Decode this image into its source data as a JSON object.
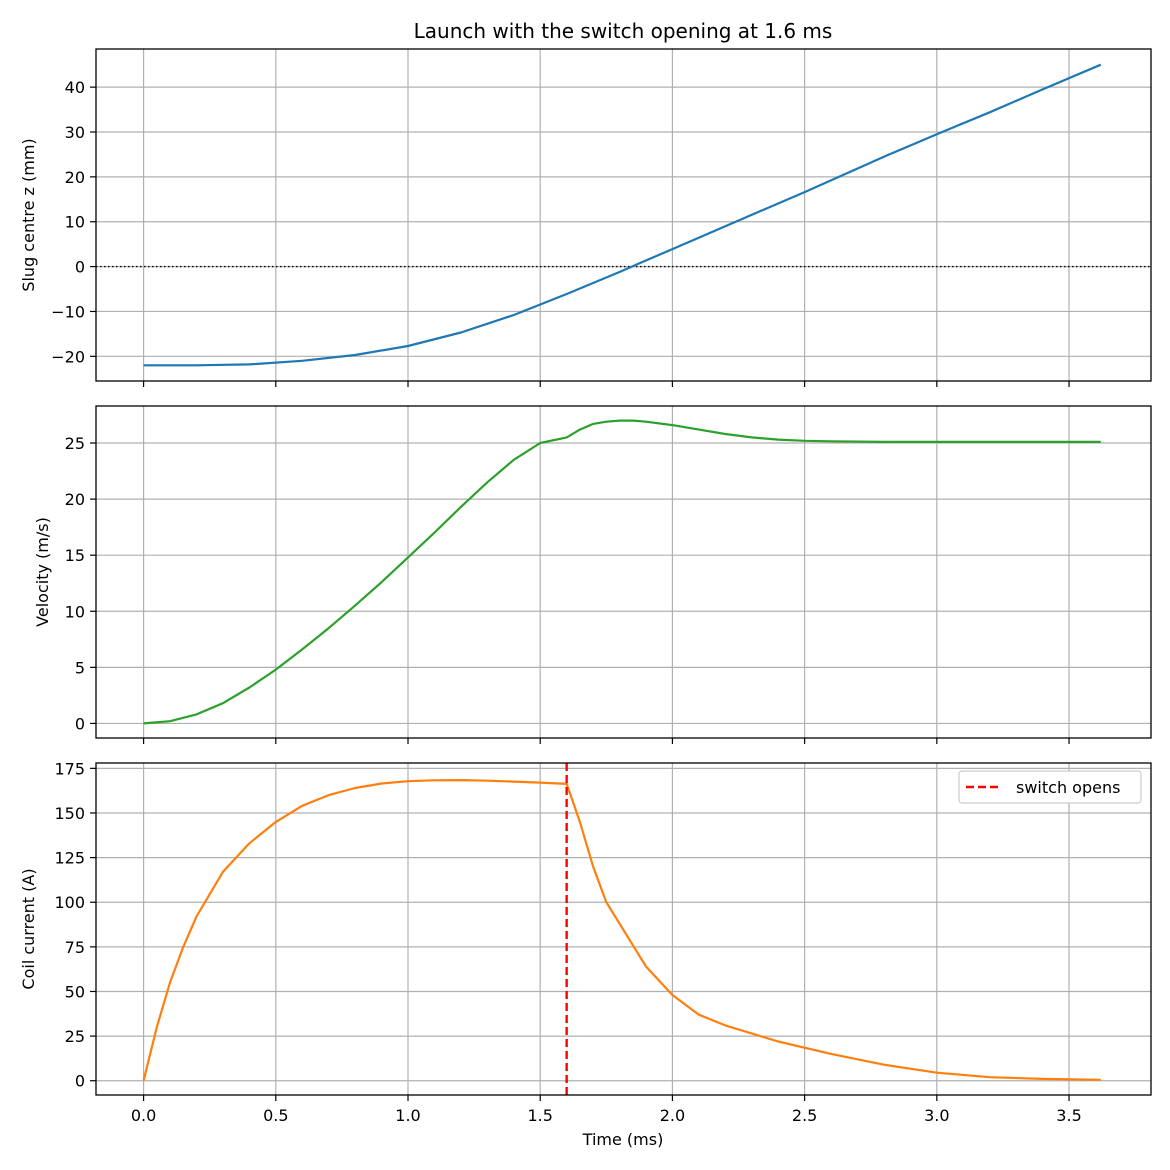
{
  "figure": {
    "title": "Launch with the switch opening at 1.6 ms",
    "xlabel": "Time (ms)"
  },
  "colors": {
    "position": "#1f77b4",
    "velocity": "#2ca02c",
    "current": "#ff7f0e",
    "switch": "#ff0000",
    "grid": "#b0b0b0"
  },
  "chart_data": [
    {
      "type": "line",
      "title": "Launch with the switch opening at 1.6 ms",
      "xlabel": "",
      "ylabel": "Slug centre z (mm)",
      "xlim": [
        -0.18,
        3.81
      ],
      "ylim": [
        -25.5,
        48.5
      ],
      "xticks": [
        0.0,
        0.5,
        1.0,
        1.5,
        2.0,
        2.5,
        3.0,
        3.5
      ],
      "yticks": [
        -20,
        -10,
        0,
        10,
        20,
        30,
        40
      ],
      "ytick_labels": [
        "−20",
        "−10",
        "0",
        "10",
        "20",
        "30",
        "40"
      ],
      "grid": true,
      "hline": {
        "y": 0,
        "style": "dotted"
      },
      "series": [
        {
          "color": "#1f77b4",
          "x": [
            0.0,
            0.2,
            0.4,
            0.6,
            0.8,
            1.0,
            1.2,
            1.4,
            1.6,
            1.8,
            1.87,
            2.0,
            2.2,
            2.5,
            2.8,
            3.0,
            3.2,
            3.4,
            3.62
          ],
          "y": [
            -22,
            -22,
            -21.8,
            -21,
            -19.7,
            -17.7,
            -14.7,
            -10.8,
            -6.1,
            -1.2,
            0.6,
            3.9,
            9.0,
            16.6,
            24.5,
            29.5,
            34.4,
            39.5,
            45.0
          ]
        }
      ]
    },
    {
      "type": "line",
      "xlabel": "",
      "ylabel": "Velocity (m/s)",
      "xlim": [
        -0.18,
        3.81
      ],
      "ylim": [
        -1.3,
        28.3
      ],
      "xticks": [
        0.0,
        0.5,
        1.0,
        1.5,
        2.0,
        2.5,
        3.0,
        3.5
      ],
      "yticks": [
        0,
        5,
        10,
        15,
        20,
        25
      ],
      "grid": true,
      "series": [
        {
          "color": "#2ca02c",
          "x": [
            0.0,
            0.1,
            0.2,
            0.3,
            0.4,
            0.5,
            0.6,
            0.7,
            0.8,
            0.9,
            1.0,
            1.1,
            1.2,
            1.3,
            1.4,
            1.5,
            1.6,
            1.65,
            1.7,
            1.75,
            1.8,
            1.85,
            1.9,
            2.0,
            2.1,
            2.2,
            2.3,
            2.4,
            2.5,
            2.6,
            2.8,
            3.0,
            3.2,
            3.4,
            3.62
          ],
          "y": [
            0,
            0.2,
            0.8,
            1.8,
            3.2,
            4.8,
            6.6,
            8.5,
            10.5,
            12.6,
            14.8,
            17.0,
            19.3,
            21.5,
            23.5,
            25.0,
            25.5,
            26.2,
            26.7,
            26.9,
            27.0,
            27.0,
            26.9,
            26.6,
            26.2,
            25.8,
            25.5,
            25.3,
            25.2,
            25.15,
            25.1,
            25.1,
            25.1,
            25.1,
            25.1
          ]
        }
      ]
    },
    {
      "type": "line",
      "xlabel": "Time (ms)",
      "ylabel": "Coil current (A)",
      "xlim": [
        -0.18,
        3.81
      ],
      "ylim": [
        -8,
        178
      ],
      "xticks": [
        0.0,
        0.5,
        1.0,
        1.5,
        2.0,
        2.5,
        3.0,
        3.5
      ],
      "xtick_labels": [
        "0.0",
        "0.5",
        "1.0",
        "1.5",
        "2.0",
        "2.5",
        "3.0",
        "3.5"
      ],
      "yticks": [
        0,
        25,
        50,
        75,
        100,
        125,
        150,
        175
      ],
      "grid": true,
      "legend": {
        "position": "top-right",
        "entries": [
          "switch opens"
        ]
      },
      "vline": {
        "x": 1.6,
        "label": "switch opens",
        "style": "dashed"
      },
      "series": [
        {
          "color": "#ff7f0e",
          "x": [
            0.0,
            0.05,
            0.1,
            0.15,
            0.2,
            0.3,
            0.4,
            0.5,
            0.6,
            0.7,
            0.8,
            0.9,
            1.0,
            1.1,
            1.2,
            1.3,
            1.4,
            1.5,
            1.6,
            1.65,
            1.7,
            1.75,
            1.8,
            1.9,
            2.0,
            2.1,
            2.2,
            2.4,
            2.6,
            2.8,
            3.0,
            3.2,
            3.4,
            3.62
          ],
          "y": [
            0,
            30,
            55,
            75,
            92,
            117,
            133,
            145,
            154,
            160,
            164,
            166.5,
            167.8,
            168.3,
            168.4,
            168.1,
            167.6,
            167.0,
            166.3,
            145,
            120,
            100,
            88,
            64,
            48,
            37,
            31,
            22,
            15,
            9,
            4.5,
            2,
            1,
            0.5
          ]
        }
      ]
    }
  ]
}
